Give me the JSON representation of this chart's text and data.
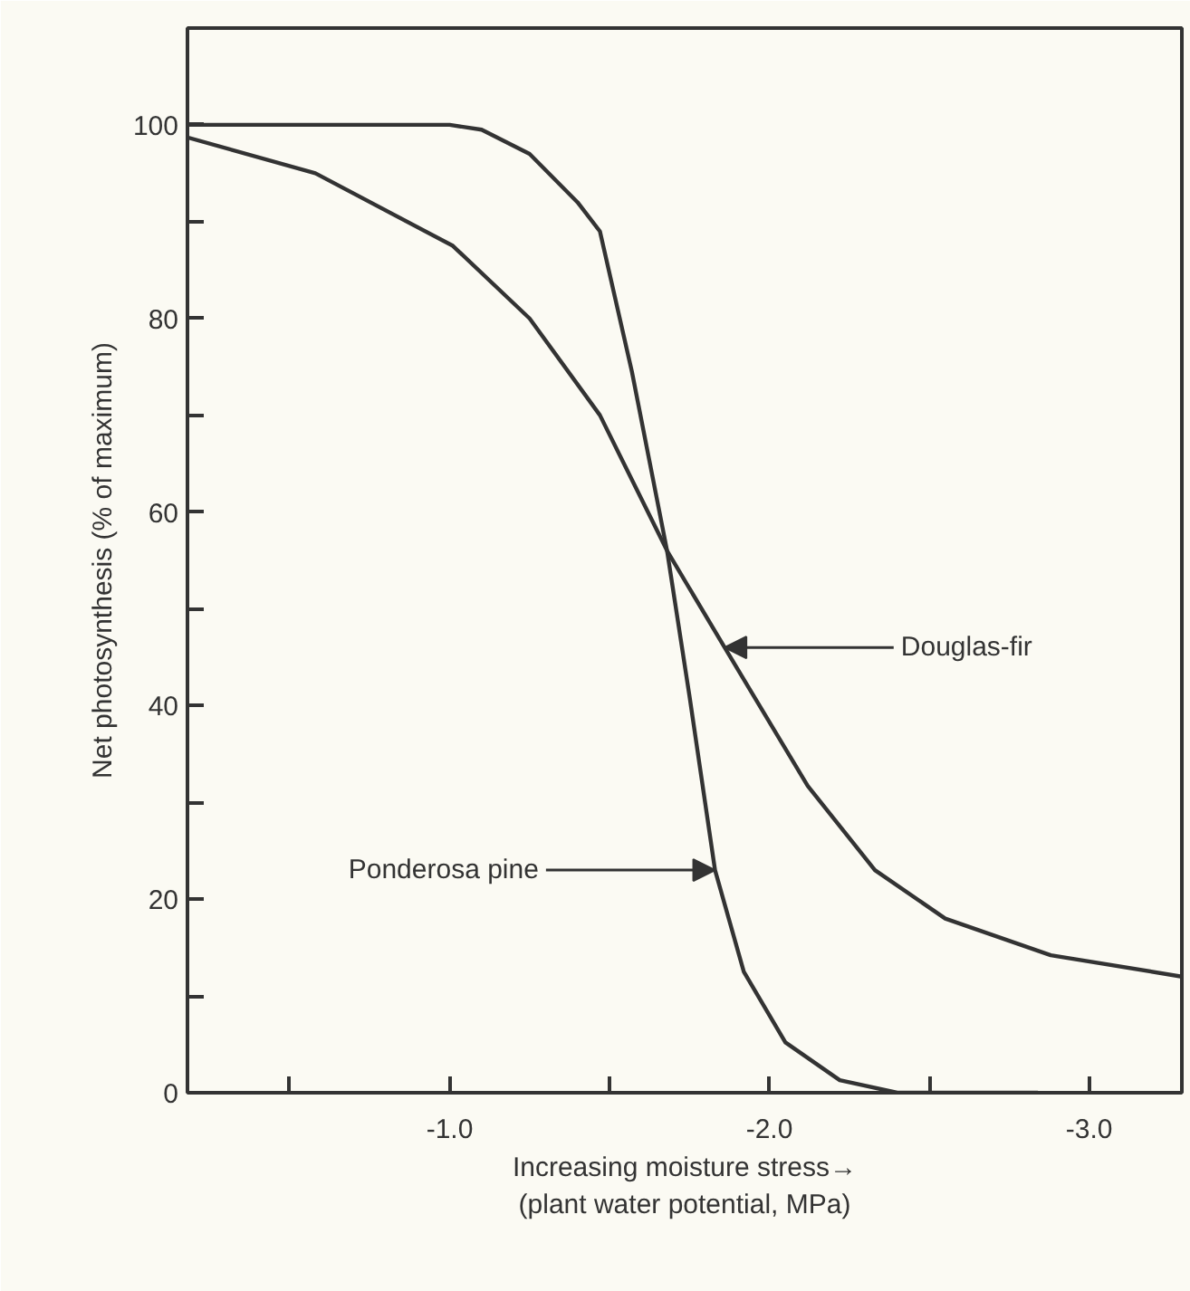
{
  "chart_data": {
    "type": "line",
    "xlabel": "Increasing moisture stress→\n(plant water potential, MPa)",
    "ylabel": "Net photosynthesis (% of maximum)",
    "xlim": [
      -0.18,
      -3.29
    ],
    "ylim": [
      0,
      110
    ],
    "xticks": [
      {
        "value": -0.5,
        "label": null
      },
      {
        "value": -1.0,
        "label": "-1.0"
      },
      {
        "value": -1.5,
        "label": null
      },
      {
        "value": -2.0,
        "label": "-2.0"
      },
      {
        "value": -2.5,
        "label": null
      },
      {
        "value": -3.0,
        "label": "-3.0"
      }
    ],
    "yticks": [
      0,
      {
        "value": 10,
        "label": null
      },
      20,
      {
        "value": 30,
        "label": null
      },
      40,
      {
        "value": 50,
        "label": null
      },
      60,
      {
        "value": 70,
        "label": null
      },
      80,
      {
        "value": 90,
        "label": null
      },
      100
    ],
    "grid": false,
    "marker": "none",
    "line_style": "solid",
    "series": [
      {
        "color": "#333333",
        "x": [
          -0.18,
          -0.6,
          -1.0,
          -1.1,
          -1.25,
          -1.4,
          -1.47,
          -1.57,
          -1.68,
          -1.75,
          -1.83,
          -1.92,
          -2.05,
          -2.22,
          -2.4,
          -2.84
        ],
        "values": [
          100,
          100,
          100,
          99.5,
          97,
          92,
          89,
          74.5,
          56,
          41,
          23,
          12.5,
          5.2,
          1.3,
          0,
          0
        ]
      },
      {
        "color": "#333333",
        "x": [
          -0.18,
          -0.58,
          -1.01,
          -1.25,
          -1.47,
          -1.68,
          -1.86,
          -2.12,
          -2.33,
          -2.55,
          -2.88,
          -3.29
        ],
        "values": [
          98.7,
          95,
          87.5,
          80,
          70,
          56,
          46,
          31.7,
          23,
          18,
          14.2,
          12
        ]
      }
    ],
    "annotations": [
      {
        "text": "Ponderosa pine",
        "x": -1.83,
        "y": 23
      },
      {
        "text": "Douglas-fir",
        "x": -1.86,
        "y": 46
      }
    ]
  }
}
